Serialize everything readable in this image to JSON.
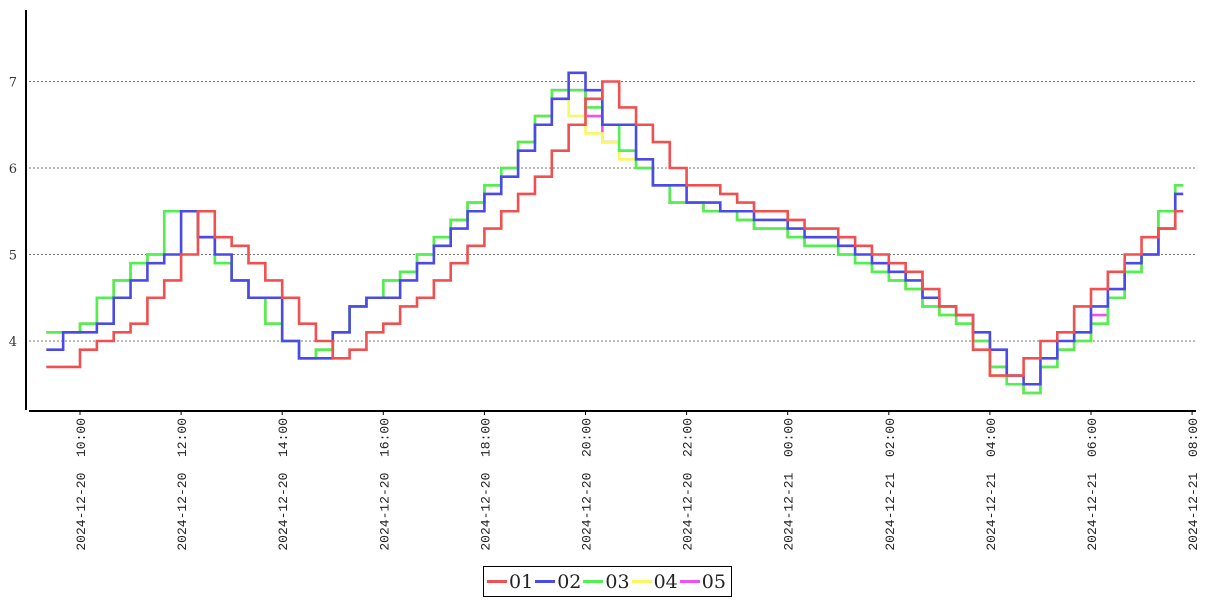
{
  "chart_data": {
    "type": "line",
    "step": true,
    "x": [
      "2024-12-20 09:20",
      "2024-12-20 09:40",
      "2024-12-20 10:00",
      "2024-12-20 10:20",
      "2024-12-20 10:40",
      "2024-12-20 11:00",
      "2024-12-20 11:20",
      "2024-12-20 11:40",
      "2024-12-20 12:00",
      "2024-12-20 12:20",
      "2024-12-20 12:40",
      "2024-12-20 13:00",
      "2024-12-20 13:20",
      "2024-12-20 13:40",
      "2024-12-20 14:00",
      "2024-12-20 14:20",
      "2024-12-20 14:40",
      "2024-12-20 15:00",
      "2024-12-20 15:20",
      "2024-12-20 15:40",
      "2024-12-20 16:00",
      "2024-12-20 16:20",
      "2024-12-20 16:40",
      "2024-12-20 17:00",
      "2024-12-20 17:20",
      "2024-12-20 17:40",
      "2024-12-20 18:00",
      "2024-12-20 18:20",
      "2024-12-20 18:40",
      "2024-12-20 19:00",
      "2024-12-20 19:20",
      "2024-12-20 19:40",
      "2024-12-20 20:00",
      "2024-12-20 20:20",
      "2024-12-20 20:40",
      "2024-12-20 21:00",
      "2024-12-20 21:20",
      "2024-12-20 21:40",
      "2024-12-20 22:00",
      "2024-12-20 22:20",
      "2024-12-20 22:40",
      "2024-12-20 23:00",
      "2024-12-20 23:20",
      "2024-12-20 23:40",
      "2024-12-21 00:00",
      "2024-12-21 00:20",
      "2024-12-21 00:40",
      "2024-12-21 01:00",
      "2024-12-21 01:20",
      "2024-12-21 01:40",
      "2024-12-21 02:00",
      "2024-12-21 02:20",
      "2024-12-21 02:40",
      "2024-12-21 03:00",
      "2024-12-21 03:20",
      "2024-12-21 03:40",
      "2024-12-21 04:00",
      "2024-12-21 04:20",
      "2024-12-21 04:40",
      "2024-12-21 05:00",
      "2024-12-21 05:20",
      "2024-12-21 05:40",
      "2024-12-21 06:00",
      "2024-12-21 06:20",
      "2024-12-21 06:40",
      "2024-12-21 07:00",
      "2024-12-21 07:20",
      "2024-12-21 07:40"
    ],
    "series": [
      {
        "name": "01",
        "color": "#f05050",
        "values": [
          3.7,
          3.7,
          3.9,
          4.0,
          4.1,
          4.2,
          4.5,
          4.7,
          5.0,
          5.5,
          5.2,
          5.1,
          4.9,
          4.7,
          4.5,
          4.2,
          4.0,
          3.8,
          3.9,
          4.1,
          4.2,
          4.4,
          4.5,
          4.7,
          4.9,
          5.1,
          5.3,
          5.5,
          5.7,
          5.9,
          6.2,
          6.5,
          6.8,
          7.0,
          6.7,
          6.5,
          6.3,
          6.0,
          5.8,
          5.8,
          5.7,
          5.6,
          5.5,
          5.5,
          5.4,
          5.3,
          5.3,
          5.2,
          5.1,
          5.0,
          4.9,
          4.8,
          4.6,
          4.4,
          4.3,
          3.9,
          3.6,
          3.6,
          3.8,
          4.0,
          4.1,
          4.4,
          4.6,
          4.8,
          5.0,
          5.2,
          5.3,
          5.5
        ]
      },
      {
        "name": "02",
        "color": "#4a4ae8",
        "values": [
          3.9,
          4.1,
          4.1,
          4.2,
          4.5,
          4.7,
          4.9,
          5.0,
          5.5,
          5.2,
          5.0,
          4.7,
          4.5,
          4.5,
          4.0,
          3.8,
          3.8,
          4.1,
          4.4,
          4.5,
          4.5,
          4.7,
          4.9,
          5.1,
          5.3,
          5.5,
          5.7,
          5.9,
          6.2,
          6.5,
          6.8,
          7.1,
          6.9,
          6.5,
          6.5,
          6.1,
          5.8,
          5.8,
          5.6,
          5.6,
          5.5,
          5.5,
          5.4,
          5.4,
          5.3,
          5.2,
          5.2,
          5.1,
          5.0,
          4.9,
          4.8,
          4.7,
          4.5,
          4.4,
          4.3,
          4.1,
          3.9,
          3.6,
          3.5,
          3.8,
          4.0,
          4.1,
          4.4,
          4.6,
          4.9,
          5.0,
          5.3,
          5.7
        ]
      },
      {
        "name": "03",
        "color": "#50f050",
        "values": [
          4.1,
          4.1,
          4.2,
          4.5,
          4.7,
          4.9,
          5.0,
          5.5,
          5.5,
          5.2,
          4.9,
          4.7,
          4.5,
          4.2,
          4.0,
          3.8,
          3.9,
          4.1,
          4.4,
          4.5,
          4.7,
          4.8,
          5.0,
          5.2,
          5.4,
          5.6,
          5.8,
          6.0,
          6.3,
          6.6,
          6.9,
          6.9,
          6.7,
          6.5,
          6.2,
          6.0,
          5.8,
          5.6,
          5.6,
          5.5,
          5.5,
          5.4,
          5.3,
          5.3,
          5.2,
          5.1,
          5.1,
          5.0,
          4.9,
          4.8,
          4.7,
          4.6,
          4.4,
          4.3,
          4.2,
          4.0,
          3.7,
          3.5,
          3.4,
          3.7,
          3.9,
          4.0,
          4.2,
          4.5,
          4.8,
          5.0,
          5.5,
          5.8
        ]
      },
      {
        "name": "04",
        "color": "#f8f860",
        "values": [
          4.1,
          4.1,
          4.2,
          4.5,
          4.7,
          4.9,
          5.0,
          5.5,
          5.5,
          5.2,
          4.9,
          4.7,
          4.5,
          4.2,
          4.0,
          3.8,
          3.9,
          4.1,
          4.4,
          4.5,
          4.7,
          4.8,
          5.0,
          5.2,
          5.4,
          5.6,
          5.8,
          6.0,
          6.3,
          6.6,
          6.8,
          6.6,
          6.4,
          6.3,
          6.1,
          6.0,
          5.8,
          5.6,
          5.6,
          5.5,
          5.5,
          5.4,
          5.3,
          5.3,
          5.2,
          5.1,
          5.1,
          5.0,
          4.9,
          4.8,
          4.7,
          4.6,
          4.4,
          4.3,
          4.2,
          4.0,
          3.6,
          3.5,
          3.4,
          3.7,
          3.9,
          4.0,
          4.2,
          4.5,
          4.8,
          5.0,
          5.5,
          5.8
        ]
      },
      {
        "name": "05",
        "color": "#f050f0",
        "values": [
          4.1,
          4.1,
          4.2,
          4.5,
          4.7,
          4.9,
          5.0,
          5.5,
          5.5,
          5.2,
          4.9,
          4.7,
          4.5,
          4.2,
          4.0,
          3.8,
          3.9,
          4.1,
          4.4,
          4.5,
          4.7,
          4.8,
          5.0,
          5.2,
          5.4,
          5.6,
          5.8,
          6.0,
          6.3,
          6.6,
          6.9,
          6.9,
          6.6,
          6.3,
          6.2,
          6.0,
          5.8,
          5.6,
          5.6,
          5.5,
          5.5,
          5.4,
          5.3,
          5.3,
          5.2,
          5.1,
          5.1,
          5.0,
          4.9,
          4.8,
          4.7,
          4.6,
          4.4,
          4.3,
          4.2,
          4.0,
          3.7,
          3.5,
          3.4,
          3.7,
          3.9,
          4.0,
          4.3,
          4.5,
          4.8,
          5.0,
          5.5,
          5.8
        ]
      }
    ],
    "xticks": [
      "2024-12-20  10:00",
      "2024-12-20  12:00",
      "2024-12-20  14:00",
      "2024-12-20  16:00",
      "2024-12-20  18:00",
      "2024-12-20  20:00",
      "2024-12-20  22:00",
      "2024-12-21  00:00",
      "2024-12-21  02:00",
      "2024-12-21  04:00",
      "2024-12-21  06:00",
      "2024-12-21  08:00"
    ],
    "yticks": [
      "4",
      "5",
      "6",
      "7"
    ],
    "ylim": [
      3.2,
      7.83
    ],
    "xlim": [
      "2024-12-20 09:03",
      "2024-12-21 08:05"
    ],
    "grid": "horizontal dotted",
    "legend": "bottom-center"
  }
}
